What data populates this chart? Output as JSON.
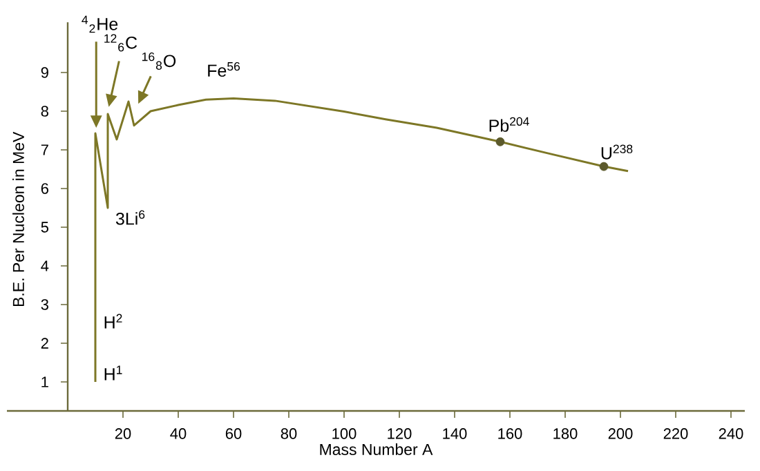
{
  "chart_data": {
    "type": "line",
    "xlabel": "Mass Number A",
    "ylabel": "B.E. Per Nucleon in MeV",
    "xlim": [
      -22,
      245
    ],
    "ylim": [
      0.25,
      10.3
    ],
    "xticks": [
      20,
      40,
      60,
      80,
      100,
      120,
      140,
      160,
      180,
      200,
      220,
      240
    ],
    "yticks": [
      1,
      2,
      3,
      4,
      5,
      6,
      7,
      8,
      9
    ],
    "series": [
      {
        "color": "#7d7726",
        "x": [
          10,
          10,
          14.5,
          14.5,
          17.75,
          22,
          24,
          30,
          40,
          50,
          60,
          75,
          100,
          115,
          133.5,
          156.5,
          175,
          194,
          202.75
        ],
        "values": [
          1,
          7.43,
          5.5,
          7.93,
          7.27,
          8.25,
          7.63,
          8.0,
          8.16,
          8.3,
          8.33,
          8.27,
          7.99,
          7.79,
          7.57,
          7.21,
          6.89,
          6.57,
          6.45
        ]
      },
      {
        "type": "scatter",
        "color": "#5c5a2c",
        "x": [
          156.5,
          194
        ],
        "values": [
          7.21,
          6.57
        ]
      }
    ],
    "annotations": [
      "$^{4}$$_{2}$He",
      "$^{12}$$_{6}$C",
      "$^{16}$$_{8}$O",
      {
        "text": "Fe$^{56}$",
        "x": 60,
        "y": 8.33
      },
      {
        "text": "Pb$^{204}$",
        "x": 156.5,
        "y": 7.21
      },
      {
        "text": "U$^{238}$",
        "x": 194,
        "y": 6.57
      },
      {
        "text": "3Li$^{6}$",
        "x": 14.5,
        "y": 5.5
      },
      {
        "text": "H$^{2}$",
        "x": 10,
        "y": 2.66
      },
      {
        "text": "H$^{1}$",
        "x": 10,
        "y": 1
      }
    ]
  }
}
